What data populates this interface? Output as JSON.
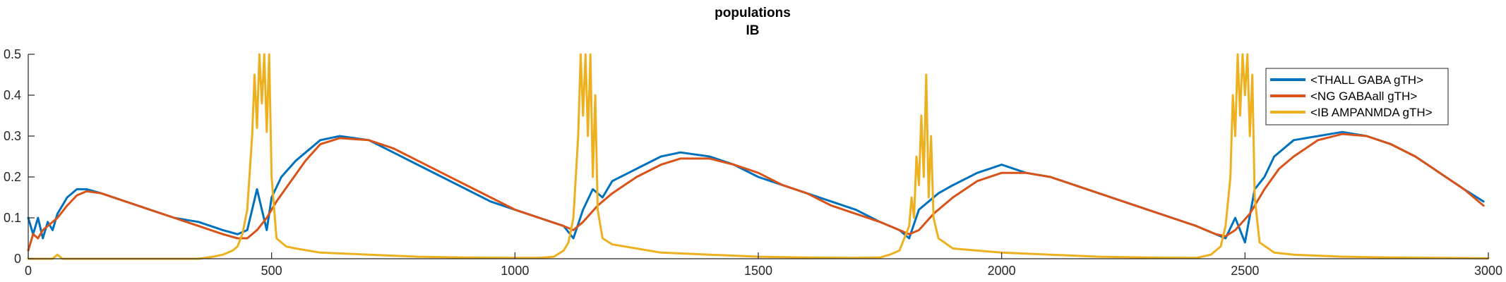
{
  "chart_data": {
    "type": "line",
    "title": [
      "populations",
      "IB"
    ],
    "xlabel": "",
    "ylabel": "",
    "xlim": [
      0,
      3000
    ],
    "ylim": [
      0,
      0.5
    ],
    "xticks": [
      0,
      500,
      1000,
      1500,
      2000,
      2500,
      3000
    ],
    "xtick_labels": [
      "0",
      "500",
      "1000",
      "1500",
      "2000",
      "2500",
      "3000"
    ],
    "yticks": [
      0,
      0.1,
      0.2,
      0.3,
      0.4,
      0.5
    ],
    "ytick_labels": [
      "0",
      "0.1",
      "0.2",
      "0.3",
      "0.4",
      "0.5"
    ],
    "grid": false,
    "legend_position": "top-right",
    "series": [
      {
        "name": "<THALL GABA gTH>",
        "color": "#0072BD",
        "x": [
          0,
          10,
          20,
          30,
          40,
          50,
          60,
          70,
          80,
          100,
          120,
          150,
          200,
          250,
          300,
          350,
          400,
          430,
          450,
          470,
          490,
          500,
          520,
          550,
          600,
          640,
          700,
          750,
          800,
          850,
          900,
          950,
          1000,
          1050,
          1100,
          1120,
          1140,
          1160,
          1180,
          1200,
          1250,
          1300,
          1340,
          1400,
          1450,
          1500,
          1550,
          1600,
          1650,
          1700,
          1750,
          1790,
          1810,
          1830,
          1850,
          1870,
          1900,
          1950,
          2000,
          2050,
          2100,
          2150,
          2200,
          2250,
          2300,
          2350,
          2400,
          2440,
          2460,
          2480,
          2500,
          2520,
          2540,
          2560,
          2600,
          2650,
          2700,
          2750,
          2800,
          2850,
          2900,
          2950,
          2990
        ],
        "values": [
          0.1,
          0.06,
          0.1,
          0.05,
          0.09,
          0.07,
          0.11,
          0.13,
          0.15,
          0.17,
          0.17,
          0.16,
          0.14,
          0.12,
          0.1,
          0.09,
          0.07,
          0.06,
          0.07,
          0.17,
          0.07,
          0.15,
          0.2,
          0.24,
          0.29,
          0.3,
          0.29,
          0.26,
          0.23,
          0.2,
          0.17,
          0.14,
          0.12,
          0.1,
          0.08,
          0.05,
          0.12,
          0.17,
          0.15,
          0.19,
          0.22,
          0.25,
          0.26,
          0.25,
          0.23,
          0.2,
          0.18,
          0.16,
          0.14,
          0.12,
          0.09,
          0.07,
          0.05,
          0.12,
          0.14,
          0.16,
          0.18,
          0.21,
          0.23,
          0.21,
          0.2,
          0.18,
          0.16,
          0.14,
          0.12,
          0.1,
          0.08,
          0.06,
          0.05,
          0.1,
          0.04,
          0.17,
          0.2,
          0.25,
          0.29,
          0.3,
          0.31,
          0.3,
          0.28,
          0.25,
          0.21,
          0.17,
          0.14
        ]
      },
      {
        "name": "<NG GABAall gTH>",
        "color": "#D95319",
        "x": [
          0,
          10,
          20,
          30,
          40,
          60,
          80,
          100,
          120,
          150,
          200,
          250,
          300,
          350,
          400,
          430,
          450,
          470,
          490,
          510,
          540,
          570,
          600,
          640,
          700,
          750,
          800,
          850,
          900,
          950,
          1000,
          1050,
          1100,
          1120,
          1140,
          1170,
          1200,
          1250,
          1300,
          1340,
          1400,
          1450,
          1500,
          1550,
          1600,
          1650,
          1700,
          1750,
          1790,
          1810,
          1830,
          1860,
          1900,
          1950,
          2000,
          2050,
          2100,
          2150,
          2200,
          2250,
          2300,
          2350,
          2400,
          2440,
          2460,
          2480,
          2510,
          2540,
          2570,
          2600,
          2650,
          2700,
          2750,
          2800,
          2850,
          2900,
          2950,
          2990
        ],
        "values": [
          0.02,
          0.06,
          0.05,
          0.07,
          0.08,
          0.1,
          0.13,
          0.155,
          0.165,
          0.16,
          0.14,
          0.12,
          0.1,
          0.08,
          0.06,
          0.05,
          0.05,
          0.07,
          0.1,
          0.14,
          0.19,
          0.24,
          0.28,
          0.295,
          0.29,
          0.27,
          0.24,
          0.21,
          0.18,
          0.15,
          0.12,
          0.1,
          0.08,
          0.07,
          0.09,
          0.13,
          0.16,
          0.2,
          0.23,
          0.245,
          0.245,
          0.23,
          0.21,
          0.18,
          0.16,
          0.13,
          0.11,
          0.09,
          0.07,
          0.06,
          0.07,
          0.11,
          0.15,
          0.19,
          0.21,
          0.21,
          0.2,
          0.18,
          0.16,
          0.14,
          0.12,
          0.1,
          0.08,
          0.06,
          0.055,
          0.07,
          0.11,
          0.17,
          0.22,
          0.25,
          0.29,
          0.305,
          0.3,
          0.28,
          0.25,
          0.21,
          0.17,
          0.13
        ]
      },
      {
        "name": "<IB AMPANMDA gTH>",
        "color": "#EDB120",
        "x": [
          0,
          10,
          20,
          30,
          40,
          50,
          60,
          70,
          80,
          100,
          150,
          200,
          250,
          300,
          350,
          380,
          400,
          420,
          430,
          440,
          450,
          460,
          465,
          470,
          475,
          480,
          485,
          490,
          495,
          500,
          510,
          530,
          550,
          600,
          700,
          800,
          900,
          1000,
          1050,
          1080,
          1100,
          1110,
          1120,
          1130,
          1135,
          1140,
          1145,
          1150,
          1155,
          1160,
          1165,
          1170,
          1180,
          1200,
          1250,
          1300,
          1400,
          1500,
          1600,
          1700,
          1750,
          1770,
          1790,
          1800,
          1810,
          1815,
          1820,
          1825,
          1830,
          1835,
          1840,
          1845,
          1850,
          1855,
          1860,
          1870,
          1900,
          2000,
          2100,
          2200,
          2300,
          2400,
          2430,
          2450,
          2460,
          2470,
          2475,
          2480,
          2485,
          2490,
          2495,
          2500,
          2505,
          2510,
          2515,
          2520,
          2530,
          2560,
          2600,
          2700,
          2800,
          2900,
          3000
        ],
        "values": [
          0.0,
          0.0,
          0.0,
          0.0,
          0.0,
          0.0,
          0.01,
          0.0,
          0.0,
          0.0,
          0.0,
          0.0,
          0.0,
          0.0,
          0.0,
          0.005,
          0.01,
          0.02,
          0.03,
          0.06,
          0.12,
          0.3,
          0.45,
          0.32,
          0.5,
          0.38,
          0.5,
          0.31,
          0.5,
          0.2,
          0.05,
          0.03,
          0.025,
          0.015,
          0.01,
          0.005,
          0.003,
          0.002,
          0.002,
          0.005,
          0.02,
          0.04,
          0.1,
          0.3,
          0.5,
          0.35,
          0.5,
          0.3,
          0.5,
          0.2,
          0.4,
          0.12,
          0.05,
          0.035,
          0.025,
          0.015,
          0.01,
          0.005,
          0.003,
          0.002,
          0.003,
          0.01,
          0.02,
          0.05,
          0.08,
          0.15,
          0.1,
          0.25,
          0.18,
          0.35,
          0.2,
          0.45,
          0.15,
          0.3,
          0.1,
          0.05,
          0.025,
          0.015,
          0.01,
          0.005,
          0.003,
          0.002,
          0.01,
          0.03,
          0.08,
          0.2,
          0.4,
          0.3,
          0.5,
          0.35,
          0.5,
          0.4,
          0.5,
          0.3,
          0.45,
          0.15,
          0.04,
          0.015,
          0.01,
          0.005,
          0.003,
          0.002,
          0.001
        ]
      }
    ]
  }
}
